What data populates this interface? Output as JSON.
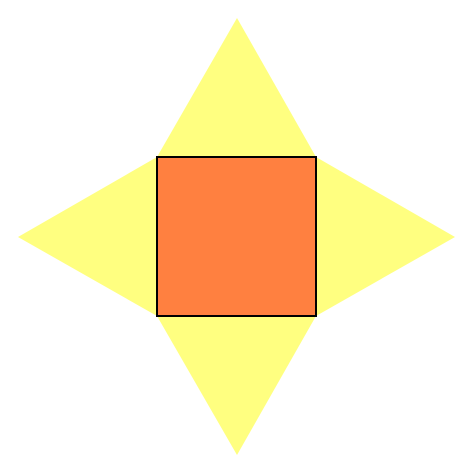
{
  "figure": {
    "shape": "square-based pyramid net",
    "components": {
      "base": {
        "shape": "square",
        "fill": "#FF8040",
        "stroke": "#000000"
      },
      "faces": [
        {
          "id": "top-triangle",
          "shape": "triangle",
          "fill": "#FFFF80"
        },
        {
          "id": "right-triangle",
          "shape": "triangle",
          "fill": "#FFFF80"
        },
        {
          "id": "bottom-triangle",
          "shape": "triangle",
          "fill": "#FFFF80"
        },
        {
          "id": "left-triangle",
          "shape": "triangle",
          "fill": "#FFFF80"
        }
      ]
    },
    "colors": {
      "background": "#FFFFFF",
      "triangle_fill": "#FFFF80",
      "square_fill": "#FF8040",
      "square_stroke": "#000000"
    }
  }
}
